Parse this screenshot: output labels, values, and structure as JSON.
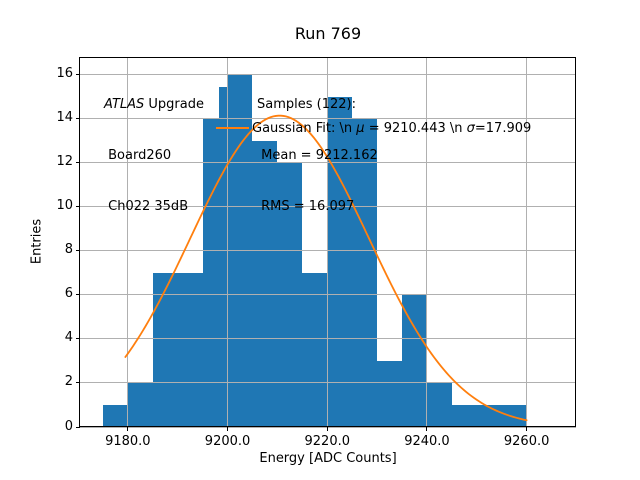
{
  "figure": {
    "title": "Run 769",
    "xlabel": "Energy [ADC Counts]",
    "ylabel": "Entries"
  },
  "annotations": {
    "detector": {
      "line1_italic": "ATLAS",
      "line1_rest": " Upgrade",
      "line2": " Board260",
      "line3": " Ch022 35dB"
    },
    "stats": {
      "line1": "Samples (122):",
      "line2": " Mean = 9212.162",
      "line3": " RMS = 16.097"
    }
  },
  "legend": {
    "gaussian": {
      "prefix": "Gaussian Fit: \\n ",
      "mu_symbol": "μ",
      "mu_value": " = 9210.443 \\n ",
      "sigma_symbol": "σ",
      "sigma_value": "=17.909"
    }
  },
  "chart_data": {
    "type": "bar",
    "subtype": "histogram",
    "title": "Run 769",
    "xlabel": "Energy [ADC Counts]",
    "ylabel": "Entries",
    "bin_edges": [
      9175,
      9180,
      9185,
      9190,
      9195,
      9200,
      9205,
      9210,
      9215,
      9220,
      9225,
      9230,
      9235,
      9240,
      9245,
      9250,
      9255,
      9260
    ],
    "counts": [
      1,
      2,
      7,
      7,
      14,
      16,
      13,
      12,
      7,
      15,
      14,
      3,
      6,
      2,
      1,
      1,
      1
    ],
    "total_samples": 122,
    "mean": 9212.162,
    "rms": 16.097,
    "fit": {
      "type": "gaussian",
      "mu": 9210.443,
      "sigma": 17.909,
      "amplitude": 14.15,
      "x_start": 9179.5,
      "x_end": 9260.0,
      "color": "#ff7f0e"
    },
    "x_ticks": [
      9180,
      9200,
      9220,
      9240,
      9260
    ],
    "x_tick_labels": [
      "9180.0",
      "9200.0",
      "9220.0",
      "9240.0",
      "9260.0"
    ],
    "y_ticks": [
      0,
      2,
      4,
      6,
      8,
      10,
      12,
      14,
      16
    ],
    "y_tick_labels": [
      "0",
      "2",
      "4",
      "6",
      "8",
      "10",
      "12",
      "14",
      "16"
    ],
    "xlim": [
      9170.4,
      9269.9
    ],
    "ylim": [
      0,
      16.77
    ],
    "grid": true,
    "grid_color": "#b0b0b0",
    "bar_color": "#1f77b4",
    "axis_color": "#000000",
    "legend_position": "upper-center",
    "artifact_step": {
      "x0": 9198.3,
      "x1": 9199.9,
      "height": 15.45
    }
  }
}
